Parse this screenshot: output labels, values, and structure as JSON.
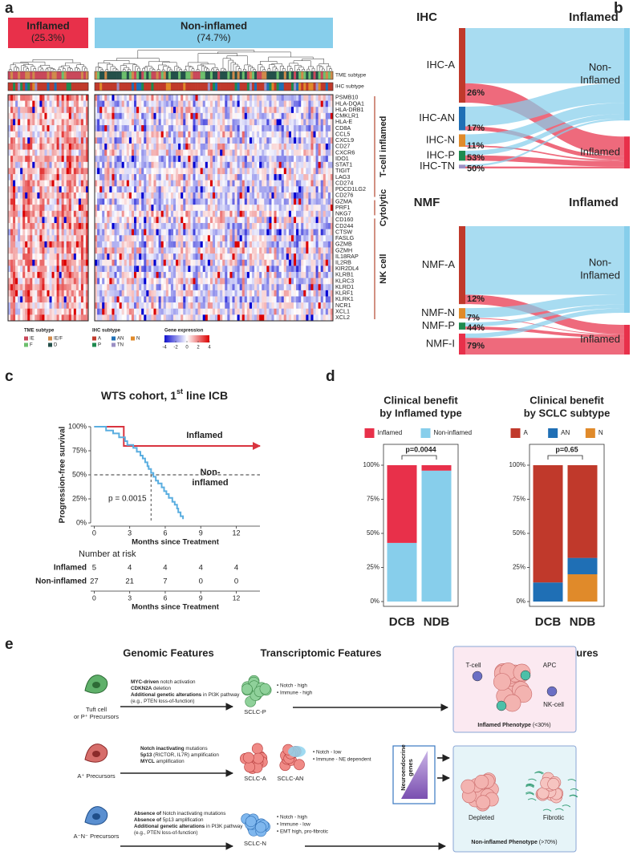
{
  "panel_a": {
    "label": "a",
    "groups": [
      {
        "name": "Inflamed",
        "share": "(25.3%)",
        "color": "#e8304a"
      },
      {
        "name": "Non-inflamed",
        "share": "(74.7%)",
        "color": "#87ceeb"
      }
    ],
    "tracks": [
      "TME subtype",
      "IHC subtype"
    ],
    "genes": [
      "PSMB10",
      "HLA-DQA1",
      "HLA-DRB1",
      "CMKLR1",
      "HLA-E",
      "CD8A",
      "CCL5",
      "CXCL9",
      "CD27",
      "CXCR6",
      "IDO1",
      "STAT1",
      "TIGIT",
      "LAG3",
      "CD274",
      "PDCD1LG2",
      "CD276",
      "GZMA",
      "PRF1",
      "NKG7",
      "CD160",
      "CD244",
      "CTSW",
      "FASLG",
      "GZMB",
      "GZMH",
      "IL18RAP",
      "IL2RB",
      "KIR2DL4",
      "KLRB1",
      "KLRC3",
      "KLRD1",
      "KLRF1",
      "KLRK1",
      "NCR1",
      "XCL1",
      "XCL2"
    ],
    "gene_groups": [
      "T-cell inflamed",
      "Cytolytic",
      "NK cell"
    ],
    "legend_tme": {
      "title": "TME subtype",
      "items": [
        "IE",
        "IE/F",
        "F",
        "D"
      ],
      "colors": [
        "#c9485b",
        "#d08a4b",
        "#6dbf6d",
        "#24504a"
      ]
    },
    "legend_ihc": {
      "title": "IHC subtype",
      "items": [
        "A",
        "AN",
        "N",
        "P",
        "TN"
      ],
      "colors": [
        "#c0392b",
        "#1f6fb5",
        "#e08a2a",
        "#1e8a4f",
        "#9b8fc4"
      ]
    },
    "legend_expression": {
      "title": "Gene expression",
      "ticks": [
        -4,
        -2,
        0,
        2,
        4
      ]
    }
  },
  "panel_b": {
    "label": "b",
    "sankeys": [
      {
        "left_title": "IHC",
        "right_title": "Inflamed",
        "nodes": [
          {
            "name": "IHC-A",
            "share": 60,
            "inflamed": {
              "value": 26,
              "label": "26%"
            },
            "color": "#c0392b"
          },
          {
            "name": "IHC-AN",
            "share": 19,
            "inflamed": {
              "value": 17,
              "label": "17%"
            },
            "color": "#1f6fb5"
          },
          {
            "name": "IHC-N",
            "share": 10,
            "inflamed": {
              "value": 11,
              "label": "11%"
            },
            "color": "#e08a2a"
          },
          {
            "name": "IHC-P",
            "share": 8,
            "inflamed": {
              "value": 53,
              "label": "53%"
            },
            "color": "#1e8a4f"
          },
          {
            "name": "IHC-TN",
            "share": 3,
            "inflamed": {
              "value": 50,
              "label": "50%"
            },
            "color": "#9b8fc4"
          }
        ],
        "targets": [
          {
            "lines": [
              "Non-",
              "Inflamed"
            ],
            "color": "#87ceeb"
          },
          {
            "lines": [
              "Inflamed"
            ],
            "color": "#e8304a"
          }
        ]
      },
      {
        "left_title": "NMF",
        "right_title": "Inflamed",
        "nodes": [
          {
            "name": "NMF-A",
            "share": 67,
            "inflamed": {
              "value": 12,
              "label": "12%"
            },
            "color": "#c0392b"
          },
          {
            "name": "NMF-N",
            "share": 9,
            "inflamed": {
              "value": 7,
              "label": "7%"
            },
            "color": "#e08a2a"
          },
          {
            "name": "NMF-P",
            "share": 6,
            "inflamed": {
              "value": 44,
              "label": "44%"
            },
            "color": "#1e8a4f"
          },
          {
            "name": "NMF-I",
            "share": 18,
            "inflamed": {
              "value": 79,
              "label": "79%"
            },
            "color": "#e8304a"
          }
        ],
        "targets": [
          {
            "lines": [
              "Non-",
              "Inflamed"
            ],
            "color": "#87ceeb"
          },
          {
            "lines": [
              "Inflamed"
            ],
            "color": "#e8304a"
          }
        ]
      }
    ]
  },
  "panel_c": {
    "label": "c",
    "title": [
      {
        "text": "WTS cohort, 1"
      },
      {
        "text": "st",
        "sup": true
      },
      {
        "text": " line ICB"
      }
    ],
    "ylabel": "Progression-free survival",
    "xlabel": "Months since Treatment",
    "xlim": [
      -0.3,
      14
    ],
    "ylim": [
      0,
      100
    ],
    "xticks": [
      0,
      3,
      6,
      9,
      12
    ],
    "yticks": [
      {
        "value": 0,
        "label": "0%"
      },
      {
        "value": 25,
        "label": "25%"
      },
      {
        "value": 50,
        "label": "50%"
      },
      {
        "value": 75,
        "label": "75%"
      },
      {
        "value": 100,
        "label": "100%"
      }
    ],
    "series": [
      {
        "name": "Inflamed",
        "color": "#d9343f",
        "x": [
          0,
          2.5,
          2.5,
          14
        ],
        "values": [
          100,
          100,
          80,
          80
        ]
      },
      {
        "name": [
          "Non-",
          "inflamed"
        ],
        "color": "#5aaee0",
        "x": [
          0,
          1,
          1,
          1.6,
          1.6,
          2.1,
          2.1,
          2.6,
          2.6,
          2.8,
          2.8,
          3.3,
          3.3,
          3.6,
          3.6,
          3.9,
          3.9,
          4.1,
          4.1,
          4.3,
          4.3,
          4.5,
          4.5,
          4.6,
          4.6,
          4.8,
          4.8,
          5,
          5,
          5.2,
          5.2,
          5.4,
          5.4,
          5.7,
          5.7,
          5.9,
          5.9,
          6.1,
          6.1,
          6.3,
          6.3,
          6.6,
          6.6,
          6.8,
          6.8,
          7,
          7,
          7.1,
          7.1,
          7.3,
          7.3,
          7.5,
          7.5
        ],
        "values": [
          100,
          100,
          96,
          96,
          93,
          93,
          89,
          89,
          85,
          85,
          81,
          81,
          78,
          78,
          74,
          74,
          70,
          70,
          67,
          67,
          63,
          63,
          59,
          59,
          56,
          56,
          52,
          52,
          48,
          48,
          44,
          44,
          41,
          41,
          37,
          37,
          33,
          33,
          30,
          30,
          26,
          26,
          22,
          22,
          19,
          19,
          15,
          15,
          11,
          11,
          7,
          7,
          4
        ]
      }
    ],
    "median": {
      "x": 4.8,
      "y": 50
    },
    "annotation": "p = 0.0015",
    "risk": {
      "title": "Number at risk",
      "rows": [
        {
          "name": "Inflamed",
          "values": [
            5,
            4,
            4,
            4,
            4
          ]
        },
        {
          "name": "Non-inflamed",
          "values": [
            27,
            21,
            7,
            0,
            0
          ]
        }
      ]
    }
  },
  "panel_d": {
    "label": "d",
    "charts": [
      {
        "title": [
          "Clinical benefit",
          "by Inflamed type"
        ],
        "categories": [
          "DCB",
          "NDB"
        ],
        "p": "p=0.0044",
        "series": [
          {
            "name": "Inflamed",
            "color": "#e8304a",
            "values": [
              57,
              4
            ]
          },
          {
            "name": "Non-inflamed",
            "color": "#87ceeb",
            "values": [
              43,
              96
            ]
          }
        ],
        "ylim": [
          0,
          100
        ],
        "yticks": [
          {
            "value": 0,
            "label": "0%"
          },
          {
            "value": 25,
            "label": "25%"
          },
          {
            "value": 50,
            "label": "50%"
          },
          {
            "value": 75,
            "label": "75%"
          },
          {
            "value": 100,
            "label": "100%"
          }
        ]
      },
      {
        "title": [
          "Clinical benefit",
          "by SCLC subtype"
        ],
        "categories": [
          "DCB",
          "NDB"
        ],
        "p": "p=0.65",
        "series": [
          {
            "name": "A",
            "color": "#c0392b",
            "values": [
              86,
              68
            ]
          },
          {
            "name": "AN",
            "color": "#1f6fb5",
            "values": [
              14,
              12
            ]
          },
          {
            "name": "N",
            "color": "#e08a2a",
            "values": [
              0,
              20
            ]
          }
        ],
        "ylim": [
          0,
          100
        ],
        "yticks": [
          {
            "value": 0,
            "label": "0%"
          },
          {
            "value": 25,
            "label": "25%"
          },
          {
            "value": 50,
            "label": "50%"
          },
          {
            "value": 75,
            "label": "75%"
          },
          {
            "value": 100,
            "label": "100%"
          }
        ]
      }
    ]
  },
  "panel_e": {
    "label": "e",
    "headers": [
      "Genomic Features",
      "Transcriptomic Features",
      "Immune Phenotypic Features"
    ],
    "rows": [
      {
        "precursor": [
          "Tuft cell",
          "or P⁺ Precursors"
        ],
        "genomic": [
          [
            {
              "text": "MYC-driven",
              "bold": true
            },
            {
              "text": " notch activation"
            }
          ],
          [
            {
              "text": "CDKN2A",
              "bold": true
            },
            {
              "text": " deletion"
            }
          ],
          [
            {
              "text": "Additional genetic alterations",
              "bold": true
            },
            {
              "text": " in PI3K pathway"
            }
          ],
          [
            {
              "text": "(e.g., PTEN loss-of-function)"
            }
          ]
        ],
        "subtypes": [
          "SCLC-P"
        ],
        "features": [
          "• Notch - high",
          "• Immune - high"
        ]
      },
      {
        "precursor": [
          "A⁺ Precursors"
        ],
        "genomic": [
          [
            {
              "text": "Notch inactivating",
              "bold": true
            },
            {
              "text": " mutations"
            }
          ],
          [
            {
              "text": "5p13",
              "bold": true
            },
            {
              "text": " (RICTOR, IL7R) amplification"
            }
          ],
          [
            {
              "text": "MYCL",
              "bold": true
            },
            {
              "text": " amplification"
            }
          ]
        ],
        "subtypes": [
          "SCLC-A",
          "SCLC-AN"
        ],
        "features": [
          "• Notch - low",
          "• Immune - NE dependent"
        ]
      },
      {
        "precursor": [
          "A⁻N⁻ Precursors"
        ],
        "genomic": [
          [
            {
              "text": "Absence of",
              "bold": true
            },
            {
              "text": " Notch inactivating mutations"
            }
          ],
          [
            {
              "text": "Absence of",
              "bold": true
            },
            {
              "text": " 5p13 amplification"
            }
          ],
          [
            {
              "text": "Additional genetic alterations",
              "bold": true
            },
            {
              "text": " in PI3K pathway"
            }
          ],
          [
            {
              "text": "(e.g., PTEN loss-of-function)"
            }
          ]
        ],
        "subtypes": [
          "SCLC-N"
        ],
        "features": [
          "• Notch - high",
          "• Immune - low",
          "• EMT high, pro-fibrotic"
        ]
      }
    ],
    "neuroendocrine": [
      "Neuroendocrine",
      "genes"
    ],
    "inflamed": {
      "cells": [
        "T-cell",
        "APC",
        "NK-cell"
      ],
      "title": [
        {
          "text": "Inflamed Phenotype",
          "bold": true
        },
        {
          "text": " (<30%)"
        }
      ]
    },
    "noninflamed": {
      "types": [
        "Depleted",
        "Fibrotic"
      ],
      "title": [
        {
          "text": "Non-inflamed Phenotype",
          "bold": true
        },
        {
          "text": " (>70%)"
        }
      ]
    }
  }
}
